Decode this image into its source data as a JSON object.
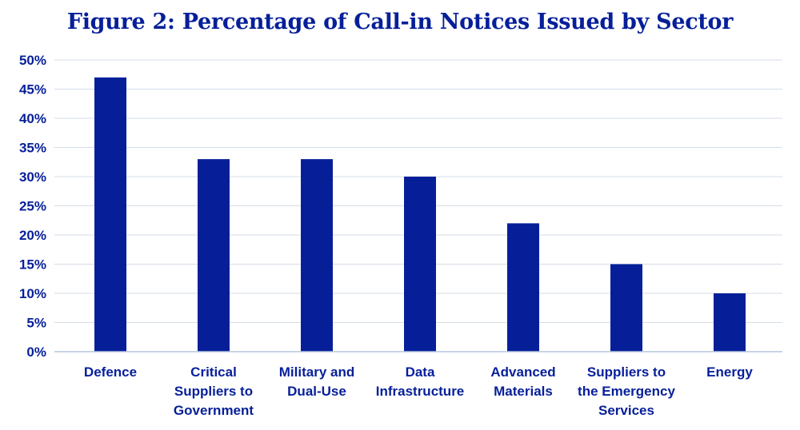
{
  "colors": {
    "bar": "#061f99",
    "text": "#061f99",
    "grid": "#d4dde8",
    "axis": "#b6c6dc"
  },
  "chart_data": {
    "type": "bar",
    "title": "Figure 2: Percentage of Call-in Notices Issued by Sector",
    "xlabel": "",
    "ylabel": "",
    "ylim": [
      0,
      50
    ],
    "y_ticks": [
      "0%",
      "5%",
      "10%",
      "15%",
      "20%",
      "25%",
      "30%",
      "35%",
      "40%",
      "45%",
      "50%"
    ],
    "grid": true,
    "legend": "none",
    "categories": [
      [
        "Defence"
      ],
      [
        "Critical",
        "Suppliers to",
        "Government"
      ],
      [
        "Military and",
        "Dual-Use"
      ],
      [
        "Data",
        "Infrastructure"
      ],
      [
        "Advanced",
        "Materials"
      ],
      [
        "Suppliers to",
        "the Emergency",
        "Services"
      ],
      [
        "Energy"
      ]
    ],
    "values": [
      47,
      33,
      33,
      30,
      22,
      15,
      10
    ]
  }
}
